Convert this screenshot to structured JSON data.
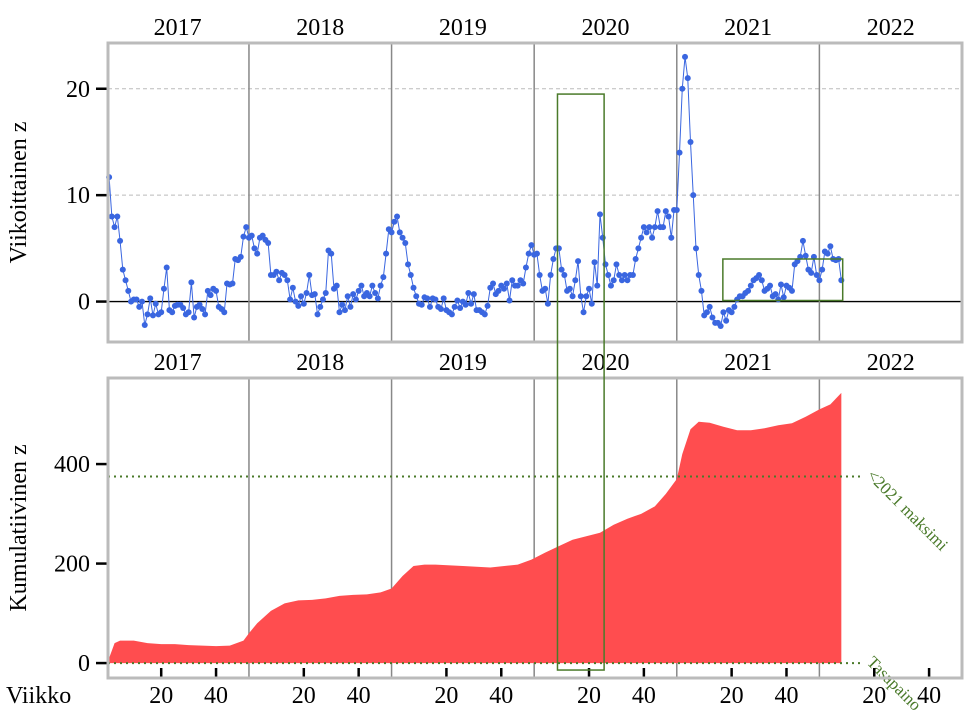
{
  "chart_data": [
    {
      "type": "line",
      "ylabel": "Viikoittainen z",
      "color": "#3a66e0",
      "xlim": [
        0.6,
        312
      ],
      "ylim": [
        -3.8,
        24.3
      ],
      "yticks": [
        0,
        10,
        20
      ],
      "grid": true,
      "years": [
        "2017",
        "2018",
        "2019",
        "2020",
        "2021",
        "2022"
      ],
      "year_bounds": [
        52,
        104,
        156,
        208,
        260
      ],
      "x": [
        1,
        2,
        3,
        4,
        5,
        6,
        7,
        8,
        9,
        10,
        11,
        12,
        13,
        14,
        15,
        16,
        17,
        18,
        19,
        20,
        21,
        22,
        23,
        24,
        25,
        26,
        27,
        28,
        29,
        30,
        31,
        32,
        33,
        34,
        35,
        36,
        37,
        38,
        39,
        40,
        41,
        42,
        43,
        44,
        45,
        46,
        47,
        48,
        49,
        50,
        51,
        52,
        53,
        54,
        55,
        56,
        57,
        58,
        59,
        60,
        61,
        62,
        63,
        64,
        65,
        66,
        67,
        68,
        69,
        70,
        71,
        72,
        73,
        74,
        75,
        76,
        77,
        78,
        79,
        80,
        81,
        82,
        83,
        84,
        85,
        86,
        87,
        88,
        89,
        90,
        91,
        92,
        93,
        94,
        95,
        96,
        97,
        98,
        99,
        100,
        101,
        102,
        103,
        104,
        105,
        106,
        107,
        108,
        109,
        110,
        111,
        112,
        113,
        114,
        115,
        116,
        117,
        118,
        119,
        120,
        121,
        122,
        123,
        124,
        125,
        126,
        127,
        128,
        129,
        130,
        131,
        132,
        133,
        134,
        135,
        136,
        137,
        138,
        139,
        140,
        141,
        142,
        143,
        144,
        145,
        146,
        147,
        148,
        149,
        150,
        151,
        152,
        153,
        154,
        155,
        156,
        157,
        158,
        159,
        160,
        161,
        162,
        163,
        164,
        165,
        166,
        167,
        168,
        169,
        170,
        171,
        172,
        173,
        174,
        175,
        176,
        177,
        178,
        179,
        180,
        181,
        182,
        183,
        184,
        185,
        186,
        187,
        188,
        189,
        190,
        191,
        192,
        193,
        194,
        195,
        196,
        197,
        198,
        199,
        200,
        201,
        202,
        203,
        204,
        205,
        206,
        207,
        208,
        209,
        210,
        211,
        212,
        213,
        214,
        215,
        216,
        217,
        218,
        219,
        220,
        221,
        222,
        223,
        224,
        225,
        226,
        227,
        228,
        229,
        230,
        231,
        232,
        233,
        234,
        235,
        236,
        237,
        238,
        239,
        240,
        241,
        242,
        243,
        244,
        245,
        246,
        247,
        248,
        249,
        250,
        251,
        252,
        253,
        254,
        255,
        256,
        257,
        258,
        259,
        260,
        261,
        262,
        263,
        264,
        265,
        266,
        267,
        268
      ],
      "values": [
        11.7,
        8,
        7,
        8,
        5.7,
        3,
        2,
        1,
        0,
        0.2,
        0.2,
        -0.5,
        0,
        -2.2,
        -1.2,
        0.3,
        -1.3,
        -0.2,
        -1.2,
        -1,
        1.2,
        3.2,
        -0.8,
        -1,
        -0.4,
        -0.3,
        -0.3,
        -0.6,
        -1.2,
        -1,
        1.8,
        -1.5,
        -0.5,
        -0.3,
        -0.7,
        -1.2,
        1,
        0.6,
        1.2,
        1,
        -0.5,
        -0.7,
        -1,
        1.7,
        1.6,
        1.7,
        4,
        3.9,
        4.2,
        6.1,
        7,
        6,
        6.2,
        5,
        4.5,
        6,
        6.2,
        5.8,
        5.5,
        2.5,
        2.5,
        2.8,
        2,
        2.7,
        2.5,
        2,
        0.2,
        1.3,
        0,
        -0.4,
        0.5,
        -0.2,
        0.8,
        2.5,
        0.6,
        0.7,
        -1.2,
        -0.5,
        0.2,
        0.8,
        4.8,
        4.5,
        1.2,
        1.5,
        -1,
        -0.3,
        -0.8,
        0.5,
        -0.5,
        0.7,
        0.2,
        1,
        1.5,
        0.5,
        0.8,
        0.5,
        1.5,
        0.8,
        0.3,
        1.5,
        2.3,
        4.5,
        6.8,
        6.5,
        7.5,
        8,
        6.5,
        6,
        5.5,
        3.5,
        2.5,
        1.3,
        0.5,
        -0.2,
        -0.3,
        0.4,
        0.3,
        -0.5,
        0.3,
        0.2,
        -0.5,
        -0.7,
        0.3,
        -0.8,
        -1,
        -1.2,
        -0.5,
        0.1,
        -0.6,
        0,
        -0.3,
        0.8,
        -0.2,
        0.7,
        -0.8,
        -0.8,
        -1,
        -1.2,
        -0.4,
        1.3,
        1.7,
        0.7,
        1,
        1.5,
        1.2,
        1.7,
        0.1,
        2,
        1.5,
        1.5,
        2,
        1.7,
        3.2,
        4.5,
        5.3,
        4.4,
        4.5,
        2.5,
        1,
        1.2,
        -0.2,
        2.5,
        4,
        5,
        5,
        3,
        2.5,
        1,
        1.2,
        0.5,
        2,
        3.8,
        0.5,
        -1,
        0.5,
        1.2,
        -0.2,
        3.7,
        1.5,
        8.2,
        6,
        3.5,
        2.5,
        1.5,
        2,
        3.5,
        2.5,
        2,
        2.5,
        2,
        2.5,
        2.5,
        4,
        5,
        6,
        7,
        6.5,
        7,
        6,
        7,
        8.5,
        7,
        7,
        8.5,
        8,
        6,
        8.6,
        8.6,
        14,
        20,
        23,
        21,
        15,
        10,
        5,
        2.5,
        1,
        -1.3,
        -1,
        -0.5,
        -1.5,
        -2,
        -2,
        -2.3,
        -1,
        -1.8,
        -0.8,
        -1,
        -0.5,
        0.2,
        0.5,
        0.5,
        0.8,
        1,
        1.5,
        2,
        2.2,
        2.5,
        2,
        1,
        1.2,
        1.5,
        0.5,
        0.7,
        0.2,
        1.6,
        0.4,
        1.5,
        1.3,
        1,
        3.5,
        3.8,
        4.2,
        5.7,
        4.3,
        3,
        2.7,
        4.2,
        2.5,
        2,
        3,
        4.7,
        4.5,
        5.2,
        4,
        3.9,
        4,
        2
      ],
      "boxes": [
        {
          "x": [
            224.8,
            268.5
          ],
          "y": [
            0.1,
            4
          ]
        }
      ],
      "span_box": {
        "x": [
          164.5,
          181.5
        ],
        "y_top": 19.5
      }
    },
    {
      "type": "area",
      "ylabel": "Kumulatiivinen z",
      "xlabel": "Viikko",
      "color": "#ff4d4f",
      "xlim": [
        0.6,
        312
      ],
      "ylim": [
        -30,
        573
      ],
      "yticks": [
        0,
        200,
        400
      ],
      "xticks": [
        {
          "value": 20,
          "label": "20"
        },
        {
          "value": 40,
          "label": "40"
        },
        {
          "value": 72,
          "label": "20"
        },
        {
          "value": 92,
          "label": "40"
        },
        {
          "value": 124,
          "label": "20"
        },
        {
          "value": 144,
          "label": "40"
        },
        {
          "value": 176,
          "label": "20"
        },
        {
          "value": 196,
          "label": "40"
        },
        {
          "value": 228,
          "label": "20"
        },
        {
          "value": 248,
          "label": "40"
        },
        {
          "value": 280,
          "label": "20"
        },
        {
          "value": 300,
          "label": "40"
        }
      ],
      "years": [
        "2017",
        "2018",
        "2019",
        "2020",
        "2021",
        "2022"
      ],
      "year_bounds": [
        52,
        104,
        156,
        208,
        260
      ],
      "x": [
        1,
        3,
        5,
        10,
        15,
        20,
        25,
        30,
        35,
        40,
        45,
        50,
        52,
        55,
        60,
        65,
        70,
        75,
        80,
        85,
        90,
        95,
        100,
        104,
        108,
        112,
        116,
        120,
        130,
        140,
        150,
        155,
        160,
        165,
        170,
        175,
        180,
        185,
        190,
        195,
        200,
        204,
        208,
        210,
        213,
        216,
        220,
        225,
        230,
        235,
        240,
        245,
        250,
        255,
        260,
        264,
        268
      ],
      "values": [
        10,
        40,
        45,
        45,
        40,
        38,
        38,
        36,
        35,
        34,
        35,
        45,
        60,
        80,
        105,
        120,
        126,
        127,
        130,
        135,
        137,
        138,
        142,
        150,
        175,
        195,
        198,
        198,
        195,
        192,
        198,
        208,
        222,
        235,
        248,
        255,
        262,
        278,
        290,
        300,
        315,
        340,
        370,
        420,
        470,
        485,
        483,
        475,
        468,
        468,
        472,
        478,
        482,
        495,
        510,
        520,
        543
      ],
      "hlines": [
        {
          "value": 375,
          "label": "<2021 maksimi"
        },
        {
          "value": 0,
          "label": "Tasapaino"
        }
      ],
      "hline_color": "#4a7a2a",
      "span_box": {
        "y_bottom": -14
      }
    }
  ]
}
